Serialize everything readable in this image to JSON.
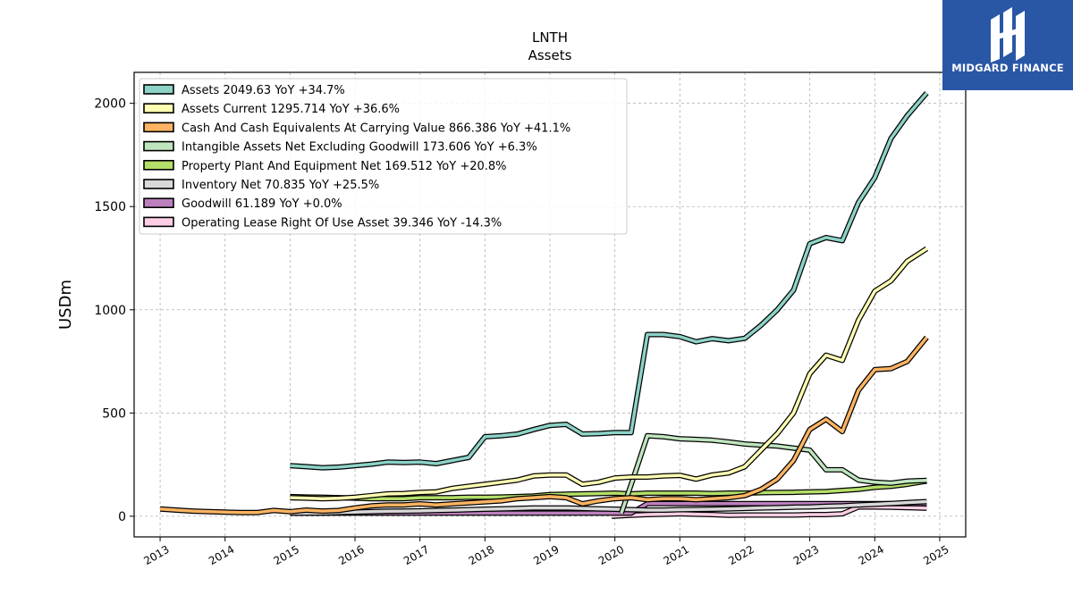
{
  "chart_data": {
    "type": "line",
    "title": "LNTH",
    "subtitle": "Assets",
    "ylabel": "USDm",
    "xlabel": "",
    "xlim": [
      2012.6,
      2025.4
    ],
    "ylim": [
      -100,
      2150
    ],
    "yticks": [
      0,
      500,
      1000,
      1500,
      2000
    ],
    "xticks": [
      2013,
      2014,
      2015,
      2016,
      2017,
      2018,
      2019,
      2020,
      2021,
      2022,
      2023,
      2024,
      2025
    ],
    "grid": true,
    "legend_position": "upper-left",
    "series": [
      {
        "name": "Assets",
        "legend": "Assets  2049.63 YoY +34.7%",
        "color": "#8dd3c7",
        "points": [
          [
            2015.0,
            245
          ],
          [
            2015.25,
            240
          ],
          [
            2015.5,
            235
          ],
          [
            2015.75,
            238
          ],
          [
            2016.0,
            245
          ],
          [
            2016.25,
            252
          ],
          [
            2016.5,
            262
          ],
          [
            2016.75,
            260
          ],
          [
            2017.0,
            262
          ],
          [
            2017.25,
            255
          ],
          [
            2017.5,
            270
          ],
          [
            2017.75,
            285
          ],
          [
            2018.0,
            385
          ],
          [
            2018.25,
            390
          ],
          [
            2018.5,
            398
          ],
          [
            2018.75,
            420
          ],
          [
            2019.0,
            440
          ],
          [
            2019.25,
            445
          ],
          [
            2019.5,
            398
          ],
          [
            2019.75,
            400
          ],
          [
            2020.0,
            405
          ],
          [
            2020.25,
            405
          ],
          [
            2020.5,
            880
          ],
          [
            2020.75,
            880
          ],
          [
            2021.0,
            870
          ],
          [
            2021.25,
            845
          ],
          [
            2021.5,
            860
          ],
          [
            2021.75,
            850
          ],
          [
            2022.0,
            862
          ],
          [
            2022.25,
            925
          ],
          [
            2022.5,
            1000
          ],
          [
            2022.75,
            1095
          ],
          [
            2023.0,
            1320
          ],
          [
            2023.25,
            1350
          ],
          [
            2023.5,
            1335
          ],
          [
            2023.75,
            1520
          ],
          [
            2024.0,
            1640
          ],
          [
            2024.25,
            1830
          ],
          [
            2024.5,
            1940
          ],
          [
            2024.8,
            2050
          ]
        ]
      },
      {
        "name": "Assets Current",
        "legend": "Assets Current  1295.714 YoY +36.6%",
        "color": "#ffffb3",
        "points": [
          [
            2015.0,
            90
          ],
          [
            2015.25,
            88
          ],
          [
            2015.5,
            85
          ],
          [
            2015.75,
            87
          ],
          [
            2016.0,
            92
          ],
          [
            2016.25,
            100
          ],
          [
            2016.5,
            108
          ],
          [
            2016.75,
            110
          ],
          [
            2017.0,
            115
          ],
          [
            2017.25,
            118
          ],
          [
            2017.5,
            135
          ],
          [
            2017.75,
            145
          ],
          [
            2018.0,
            155
          ],
          [
            2018.25,
            165
          ],
          [
            2018.5,
            175
          ],
          [
            2018.75,
            195
          ],
          [
            2019.0,
            200
          ],
          [
            2019.25,
            200
          ],
          [
            2019.5,
            155
          ],
          [
            2019.75,
            165
          ],
          [
            2020.0,
            185
          ],
          [
            2020.25,
            190
          ],
          [
            2020.5,
            190
          ],
          [
            2020.75,
            195
          ],
          [
            2021.0,
            198
          ],
          [
            2021.25,
            180
          ],
          [
            2021.5,
            200
          ],
          [
            2021.75,
            210
          ],
          [
            2022.0,
            240
          ],
          [
            2022.25,
            320
          ],
          [
            2022.5,
            400
          ],
          [
            2022.75,
            500
          ],
          [
            2023.0,
            690
          ],
          [
            2023.25,
            780
          ],
          [
            2023.5,
            755
          ],
          [
            2023.75,
            950
          ],
          [
            2024.0,
            1090
          ],
          [
            2024.25,
            1140
          ],
          [
            2024.5,
            1235
          ],
          [
            2024.8,
            1296
          ]
        ]
      },
      {
        "name": "Cash And Cash Equivalents At Carrying Value",
        "legend": "Cash And Cash Equivalents At Carrying Value  866.386 YoY +41.1%",
        "color": "#fdb462",
        "points": [
          [
            2013.0,
            35
          ],
          [
            2013.25,
            30
          ],
          [
            2013.5,
            25
          ],
          [
            2013.75,
            22
          ],
          [
            2014.0,
            20
          ],
          [
            2014.25,
            18
          ],
          [
            2014.5,
            18
          ],
          [
            2014.75,
            28
          ],
          [
            2015.0,
            22
          ],
          [
            2015.25,
            30
          ],
          [
            2015.5,
            25
          ],
          [
            2015.75,
            28
          ],
          [
            2016.0,
            40
          ],
          [
            2016.25,
            50
          ],
          [
            2016.5,
            55
          ],
          [
            2016.75,
            55
          ],
          [
            2017.0,
            60
          ],
          [
            2017.25,
            55
          ],
          [
            2017.5,
            60
          ],
          [
            2017.75,
            65
          ],
          [
            2018.0,
            70
          ],
          [
            2018.25,
            75
          ],
          [
            2018.5,
            85
          ],
          [
            2018.75,
            90
          ],
          [
            2019.0,
            95
          ],
          [
            2019.25,
            90
          ],
          [
            2019.5,
            60
          ],
          [
            2019.75,
            75
          ],
          [
            2020.0,
            85
          ],
          [
            2020.25,
            90
          ],
          [
            2020.5,
            80
          ],
          [
            2020.75,
            85
          ],
          [
            2021.0,
            85
          ],
          [
            2021.25,
            80
          ],
          [
            2021.5,
            85
          ],
          [
            2021.75,
            90
          ],
          [
            2022.0,
            100
          ],
          [
            2022.25,
            130
          ],
          [
            2022.5,
            180
          ],
          [
            2022.75,
            270
          ],
          [
            2023.0,
            420
          ],
          [
            2023.25,
            470
          ],
          [
            2023.5,
            410
          ],
          [
            2023.75,
            610
          ],
          [
            2024.0,
            710
          ],
          [
            2024.25,
            715
          ],
          [
            2024.5,
            750
          ],
          [
            2024.8,
            866
          ]
        ]
      },
      {
        "name": "Intangible Assets Net Excluding Goodwill",
        "legend": "Intangible Assets Net Excluding Goodwill  173.606 YoY +6.3%",
        "color": "#bfe5bf",
        "points": [
          [
            2020.1,
            15
          ],
          [
            2020.3,
            200
          ],
          [
            2020.5,
            390
          ],
          [
            2020.75,
            385
          ],
          [
            2021.0,
            375
          ],
          [
            2021.25,
            372
          ],
          [
            2021.5,
            368
          ],
          [
            2021.75,
            360
          ],
          [
            2022.0,
            350
          ],
          [
            2022.25,
            345
          ],
          [
            2022.5,
            340
          ],
          [
            2022.75,
            330
          ],
          [
            2023.0,
            320
          ],
          [
            2023.25,
            225
          ],
          [
            2023.5,
            225
          ],
          [
            2023.75,
            175
          ],
          [
            2024.0,
            165
          ],
          [
            2024.25,
            160
          ],
          [
            2024.5,
            170
          ],
          [
            2024.8,
            174
          ]
        ]
      },
      {
        "name": "Property Plant And Equipment Net",
        "legend": "Property Plant And Equipment Net  169.512 YoY +20.8%",
        "color": "#b3de69",
        "points": [
          [
            2015.0,
            95
          ],
          [
            2015.25,
            93
          ],
          [
            2015.5,
            92
          ],
          [
            2015.75,
            90
          ],
          [
            2016.0,
            88
          ],
          [
            2016.25,
            85
          ],
          [
            2016.5,
            85
          ],
          [
            2016.75,
            85
          ],
          [
            2017.0,
            90
          ],
          [
            2017.25,
            90
          ],
          [
            2017.5,
            90
          ],
          [
            2017.75,
            92
          ],
          [
            2018.0,
            92
          ],
          [
            2018.25,
            93
          ],
          [
            2018.5,
            95
          ],
          [
            2018.75,
            98
          ],
          [
            2019.0,
            105
          ],
          [
            2019.25,
            107
          ],
          [
            2019.5,
            108
          ],
          [
            2019.75,
            110
          ],
          [
            2020.0,
            112
          ],
          [
            2020.25,
            108
          ],
          [
            2020.5,
            112
          ],
          [
            2020.75,
            112
          ],
          [
            2021.0,
            112
          ],
          [
            2021.25,
            112
          ],
          [
            2021.5,
            110
          ],
          [
            2021.75,
            112
          ],
          [
            2022.0,
            112
          ],
          [
            2022.25,
            114
          ],
          [
            2022.5,
            115
          ],
          [
            2022.75,
            116
          ],
          [
            2023.0,
            118
          ],
          [
            2023.25,
            120
          ],
          [
            2023.5,
            125
          ],
          [
            2023.75,
            130
          ],
          [
            2024.0,
            140
          ],
          [
            2024.25,
            145
          ],
          [
            2024.5,
            155
          ],
          [
            2024.8,
            170
          ]
        ]
      },
      {
        "name": "Inventory Net",
        "legend": "Inventory Net  70.835 YoY +25.5%",
        "color": "#d9d9d9",
        "points": [
          [
            2015.0,
            15
          ],
          [
            2015.25,
            15
          ],
          [
            2015.5,
            16
          ],
          [
            2015.75,
            18
          ],
          [
            2016.0,
            20
          ],
          [
            2016.25,
            22
          ],
          [
            2016.5,
            24
          ],
          [
            2016.75,
            25
          ],
          [
            2017.0,
            26
          ],
          [
            2017.25,
            28
          ],
          [
            2017.5,
            30
          ],
          [
            2017.75,
            32
          ],
          [
            2018.0,
            34
          ],
          [
            2018.25,
            36
          ],
          [
            2018.5,
            38
          ],
          [
            2018.75,
            40
          ],
          [
            2019.0,
            40
          ],
          [
            2019.25,
            40
          ],
          [
            2019.5,
            38
          ],
          [
            2019.75,
            36
          ],
          [
            2020.0,
            34
          ],
          [
            2020.25,
            32
          ],
          [
            2020.5,
            30
          ],
          [
            2020.75,
            30
          ],
          [
            2021.0,
            32
          ],
          [
            2021.25,
            33
          ],
          [
            2021.5,
            34
          ],
          [
            2021.75,
            36
          ],
          [
            2022.0,
            38
          ],
          [
            2022.25,
            40
          ],
          [
            2022.5,
            42
          ],
          [
            2022.75,
            44
          ],
          [
            2023.0,
            45
          ],
          [
            2023.25,
            48
          ],
          [
            2023.5,
            50
          ],
          [
            2023.75,
            55
          ],
          [
            2024.0,
            58
          ],
          [
            2024.25,
            62
          ],
          [
            2024.5,
            66
          ],
          [
            2024.8,
            71
          ]
        ]
      },
      {
        "name": "Goodwill",
        "legend": "Goodwill  61.189 YoY +0.0%",
        "color": "#bc80bd",
        "points": [
          [
            2015.0,
            15
          ],
          [
            2015.5,
            15
          ],
          [
            2016.0,
            15
          ],
          [
            2016.5,
            15
          ],
          [
            2017.0,
            15
          ],
          [
            2017.5,
            15
          ],
          [
            2018.0,
            15
          ],
          [
            2018.5,
            15
          ],
          [
            2019.0,
            15
          ],
          [
            2019.5,
            15
          ],
          [
            2020.0,
            15
          ],
          [
            2020.25,
            15
          ],
          [
            2020.5,
            61
          ],
          [
            2021.0,
            61
          ],
          [
            2021.5,
            61
          ],
          [
            2022.0,
            61
          ],
          [
            2022.5,
            61
          ],
          [
            2023.0,
            61
          ],
          [
            2023.5,
            61
          ],
          [
            2024.0,
            61
          ],
          [
            2024.5,
            61
          ],
          [
            2024.8,
            61
          ]
        ]
      },
      {
        "name": "Operating Lease Right Of Use Asset",
        "legend": "Operating Lease Right Of Use Asset  39.346 YoY -14.3%",
        "color": "#fccde5",
        "points": [
          [
            2019.95,
            0
          ],
          [
            2020.25,
            5
          ],
          [
            2020.5,
            8
          ],
          [
            2020.75,
            10
          ],
          [
            2021.0,
            12
          ],
          [
            2021.25,
            10
          ],
          [
            2021.5,
            8
          ],
          [
            2021.75,
            5
          ],
          [
            2022.0,
            6
          ],
          [
            2022.25,
            6
          ],
          [
            2022.5,
            6
          ],
          [
            2022.75,
            6
          ],
          [
            2023.0,
            8
          ],
          [
            2023.25,
            8
          ],
          [
            2023.5,
            12
          ],
          [
            2023.75,
            45
          ],
          [
            2024.0,
            45
          ],
          [
            2024.25,
            44
          ],
          [
            2024.5,
            42
          ],
          [
            2024.8,
            39
          ]
        ]
      }
    ]
  },
  "logo": {
    "name": "MIDGARD FINANCE"
  }
}
